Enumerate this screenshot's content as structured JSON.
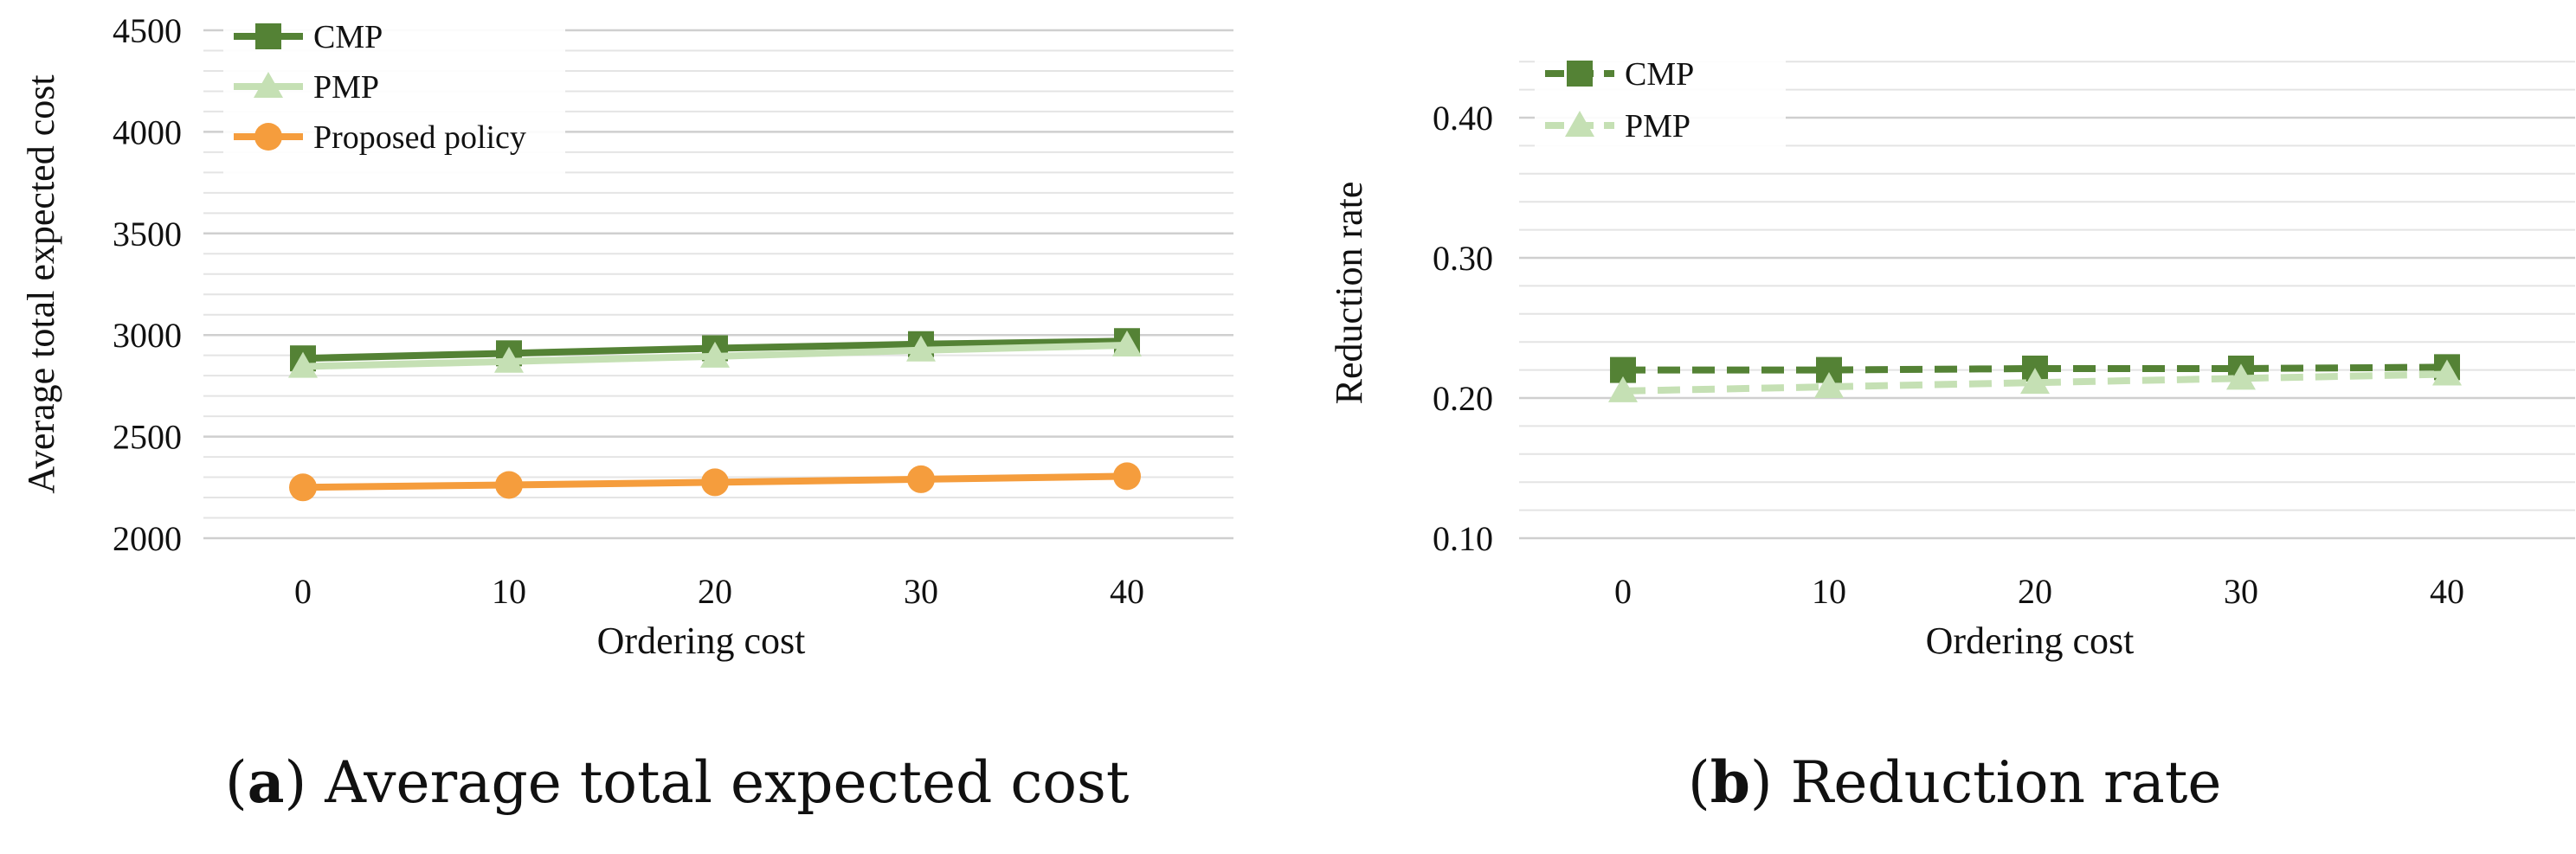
{
  "chart_data": [
    {
      "type": "line",
      "title": "",
      "xlabel": "Ordering cost",
      "ylabel": "Average total expected cost",
      "categories": [
        "0",
        "10",
        "20",
        "30",
        "40"
      ],
      "ylim": [
        2000,
        4500
      ],
      "yticks": [
        "2000",
        "2500",
        "3000",
        "3500",
        "4000",
        "4500"
      ],
      "series": [
        {
          "name": "CMP",
          "values": [
            2885,
            2910,
            2935,
            2955,
            2970
          ],
          "color": "#548235",
          "marker": "square",
          "dash": "solid"
        },
        {
          "name": "PMP",
          "values": [
            2845,
            2870,
            2895,
            2925,
            2950
          ],
          "color": "#c5e0b4",
          "marker": "triangle",
          "dash": "solid"
        },
        {
          "name": "Proposed policy",
          "values": [
            2250,
            2262,
            2275,
            2290,
            2305
          ],
          "color": "#f59d3d",
          "marker": "circle",
          "dash": "solid"
        }
      ],
      "legend": "top-left",
      "caption": {
        "label": "a",
        "text": "Average total expected cost"
      }
    },
    {
      "type": "line",
      "title": "",
      "xlabel": "Ordering cost",
      "ylabel": "Reduction rate",
      "categories": [
        "0",
        "10",
        "20",
        "30",
        "40"
      ],
      "ylim": [
        0.1,
        0.45
      ],
      "yticks": [
        "0.10",
        "0.20",
        "0.30",
        "0.40"
      ],
      "series": [
        {
          "name": "CMP",
          "values": [
            0.22,
            0.22,
            0.221,
            0.221,
            0.222
          ],
          "color": "#548235",
          "marker": "square",
          "dash": "dashed"
        },
        {
          "name": "PMP",
          "values": [
            0.205,
            0.208,
            0.211,
            0.214,
            0.217
          ],
          "color": "#c5e0b4",
          "marker": "triangle",
          "dash": "dashed"
        }
      ],
      "legend": "top-left",
      "caption": {
        "label": "b",
        "text": "Reduction rate"
      }
    }
  ]
}
